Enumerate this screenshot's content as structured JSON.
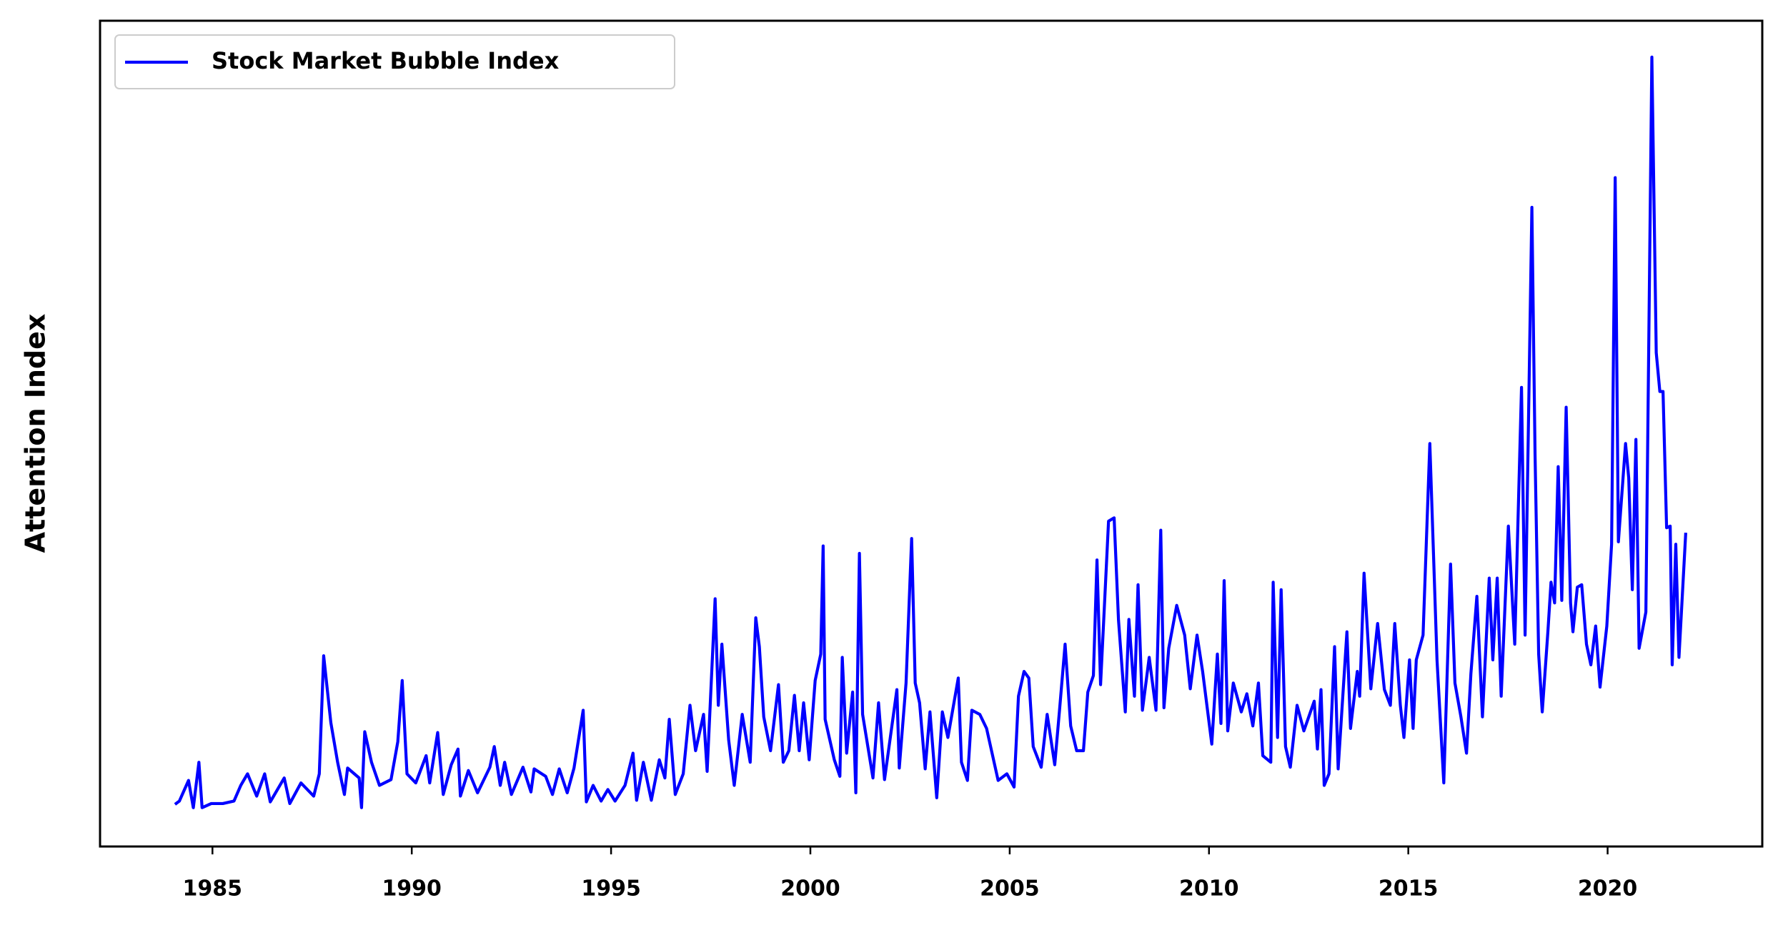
{
  "chart_data": {
    "type": "line",
    "ylabel": "Attention Index",
    "legend": "upper left",
    "xlim": [
      1982.18,
      2023.88
    ],
    "xticks": [
      1985,
      1990,
      1995,
      2000,
      2005,
      2010,
      2015,
      2020
    ],
    "ylim": [
      0,
      100
    ],
    "x": [
      1984.06,
      1984.17,
      1984.4,
      1984.52,
      1984.66,
      1984.74,
      1984.97,
      1985.26,
      1985.54,
      1985.71,
      1985.88,
      1986.11,
      1986.31,
      1986.45,
      1986.8,
      1986.94,
      1987.22,
      1987.54,
      1987.68,
      1987.79,
      1987.97,
      1988.14,
      1988.31,
      1988.39,
      1988.68,
      1988.74,
      1988.82,
      1988.99,
      1989.19,
      1989.48,
      1989.65,
      1989.76,
      1989.88,
      1990.1,
      1990.36,
      1990.45,
      1990.65,
      1990.79,
      1990.99,
      1991.16,
      1991.22,
      1991.42,
      1991.65,
      1991.96,
      1992.07,
      1992.22,
      1992.33,
      1992.5,
      1992.79,
      1992.99,
      1993.07,
      1993.36,
      1993.53,
      1993.7,
      1993.9,
      1994.07,
      1994.3,
      1994.38,
      1994.55,
      1994.75,
      1994.92,
      1995.1,
      1995.35,
      1995.55,
      1995.64,
      1995.81,
      1996.01,
      1996.21,
      1996.35,
      1996.46,
      1996.61,
      1996.81,
      1996.98,
      1997.12,
      1997.32,
      1997.41,
      1997.61,
      1997.69,
      1997.78,
      1997.95,
      1998.09,
      1998.29,
      1998.49,
      1998.63,
      1998.72,
      1998.83,
      1999.0,
      1999.2,
      1999.32,
      1999.46,
      1999.6,
      1999.72,
      1999.83,
      1999.97,
      2000.12,
      2000.26,
      2000.32,
      2000.37,
      2000.6,
      2000.74,
      2000.8,
      2000.91,
      2001.06,
      2001.14,
      2001.23,
      2001.31,
      2001.57,
      2001.71,
      2001.86,
      2002.17,
      2002.23,
      2002.4,
      2002.54,
      2002.63,
      2002.74,
      2002.88,
      2003.0,
      2003.17,
      2003.31,
      2003.45,
      2003.71,
      2003.79,
      2003.94,
      2004.05,
      2004.25,
      2004.42,
      2004.71,
      2004.93,
      2005.11,
      2005.22,
      2005.36,
      2005.48,
      2005.59,
      2005.79,
      2005.94,
      2006.13,
      2006.25,
      2006.39,
      2006.53,
      2006.68,
      2006.85,
      2006.96,
      2007.1,
      2007.19,
      2007.28,
      2007.48,
      2007.62,
      2007.73,
      2007.9,
      2007.99,
      2008.13,
      2008.22,
      2008.33,
      2008.5,
      2008.67,
      2008.79,
      2008.87,
      2008.99,
      2009.19,
      2009.39,
      2009.53,
      2009.7,
      2009.84,
      2010.07,
      2010.21,
      2010.3,
      2010.38,
      2010.47,
      2010.61,
      2010.81,
      2010.95,
      2011.1,
      2011.24,
      2011.35,
      2011.55,
      2011.61,
      2011.72,
      2011.81,
      2011.92,
      2012.04,
      2012.21,
      2012.38,
      2012.64,
      2012.72,
      2012.81,
      2012.89,
      2013.01,
      2013.15,
      2013.24,
      2013.46,
      2013.55,
      2013.72,
      2013.78,
      2013.89,
      2014.06,
      2014.23,
      2014.4,
      2014.55,
      2014.66,
      2014.8,
      2014.89,
      2015.03,
      2015.12,
      2015.2,
      2015.37,
      2015.54,
      2015.72,
      2015.89,
      2016.06,
      2016.17,
      2016.32,
      2016.46,
      2016.57,
      2016.72,
      2016.86,
      2017.03,
      2017.12,
      2017.23,
      2017.33,
      2017.51,
      2017.67,
      2017.84,
      2017.93,
      2018.1,
      2018.18,
      2018.27,
      2018.36,
      2018.5,
      2018.58,
      2018.67,
      2018.76,
      2018.85,
      2018.96,
      2019.07,
      2019.13,
      2019.24,
      2019.35,
      2019.47,
      2019.58,
      2019.7,
      2019.81,
      2019.98,
      2020.1,
      2020.19,
      2020.27,
      2020.45,
      2020.53,
      2020.62,
      2020.71,
      2020.79,
      2020.96,
      2021.11,
      2021.22,
      2021.31,
      2021.39,
      2021.48,
      2021.57,
      2021.62,
      2021.71,
      2021.79,
      2021.96
    ],
    "series": [
      {
        "name": "Stock Market Bubble Index",
        "color": "#0000ff",
        "values": [
          5.1,
          5.5,
          8.0,
          4.7,
          10.2,
          4.7,
          5.2,
          5.2,
          5.5,
          7.4,
          8.8,
          6.1,
          8.8,
          5.4,
          8.3,
          5.2,
          7.7,
          6.1,
          8.8,
          23.1,
          15.0,
          10.2,
          6.3,
          9.5,
          8.3,
          4.7,
          13.9,
          10.2,
          7.4,
          8.1,
          12.7,
          20.1,
          8.8,
          7.7,
          11.0,
          7.7,
          13.8,
          6.3,
          9.9,
          11.8,
          6.1,
          9.2,
          6.5,
          9.6,
          12.1,
          7.4,
          10.2,
          6.3,
          9.6,
          6.6,
          9.4,
          8.5,
          6.3,
          9.4,
          6.5,
          9.5,
          16.5,
          5.4,
          7.4,
          5.5,
          6.9,
          5.5,
          7.4,
          11.3,
          5.6,
          10.2,
          5.6,
          10.5,
          8.3,
          15.4,
          6.3,
          8.8,
          17.1,
          11.6,
          16.0,
          9.1,
          30.0,
          17.1,
          24.5,
          12.9,
          7.4,
          16.0,
          10.2,
          27.7,
          24.2,
          15.7,
          11.6,
          19.6,
          10.2,
          11.6,
          18.3,
          11.6,
          17.4,
          10.5,
          20.1,
          23.3,
          36.4,
          15.4,
          10.5,
          8.5,
          22.9,
          11.3,
          18.7,
          6.5,
          35.5,
          16.0,
          8.3,
          17.4,
          8.1,
          19.0,
          9.5,
          19.8,
          37.3,
          19.8,
          17.4,
          9.4,
          16.3,
          5.9,
          16.3,
          13.2,
          20.4,
          10.2,
          8.0,
          16.5,
          16.0,
          14.3,
          8.0,
          8.8,
          7.2,
          18.2,
          21.2,
          20.4,
          12.1,
          9.6,
          16.0,
          9.9,
          16.5,
          24.5,
          14.6,
          11.6,
          11.6,
          18.7,
          20.7,
          34.7,
          19.6,
          39.4,
          39.8,
          27.4,
          16.3,
          27.5,
          18.2,
          31.7,
          16.5,
          22.9,
          16.5,
          38.3,
          16.8,
          24.0,
          29.2,
          25.6,
          19.1,
          25.6,
          21.2,
          12.4,
          23.3,
          14.9,
          32.2,
          14.0,
          19.8,
          16.3,
          18.5,
          14.6,
          19.8,
          11.0,
          10.2,
          32.0,
          13.2,
          31.1,
          12.1,
          9.6,
          17.1,
          14.0,
          17.6,
          11.8,
          19.0,
          7.4,
          8.8,
          24.2,
          9.4,
          26.0,
          14.3,
          21.2,
          18.2,
          33.1,
          19.1,
          27.0,
          19.0,
          17.1,
          27.0,
          17.1,
          13.2,
          22.6,
          14.3,
          22.6,
          25.6,
          48.8,
          22.6,
          7.7,
          34.2,
          19.8,
          15.7,
          11.3,
          20.9,
          30.3,
          15.7,
          32.5,
          22.6,
          32.5,
          18.2,
          38.8,
          24.5,
          55.6,
          25.6,
          77.4,
          47.4,
          23.3,
          16.3,
          25.9,
          32.0,
          29.5,
          46.0,
          29.8,
          53.2,
          29.5,
          26.0,
          31.4,
          31.7,
          24.5,
          22.0,
          26.7,
          19.3,
          26.7,
          36.6,
          81.0,
          36.9,
          48.8,
          44.6,
          31.1,
          49.3,
          24.0,
          28.4,
          95.6,
          59.8,
          55.1,
          55.1,
          38.6,
          38.8,
          22.0,
          36.6,
          22.9,
          38.0
        ]
      }
    ]
  }
}
